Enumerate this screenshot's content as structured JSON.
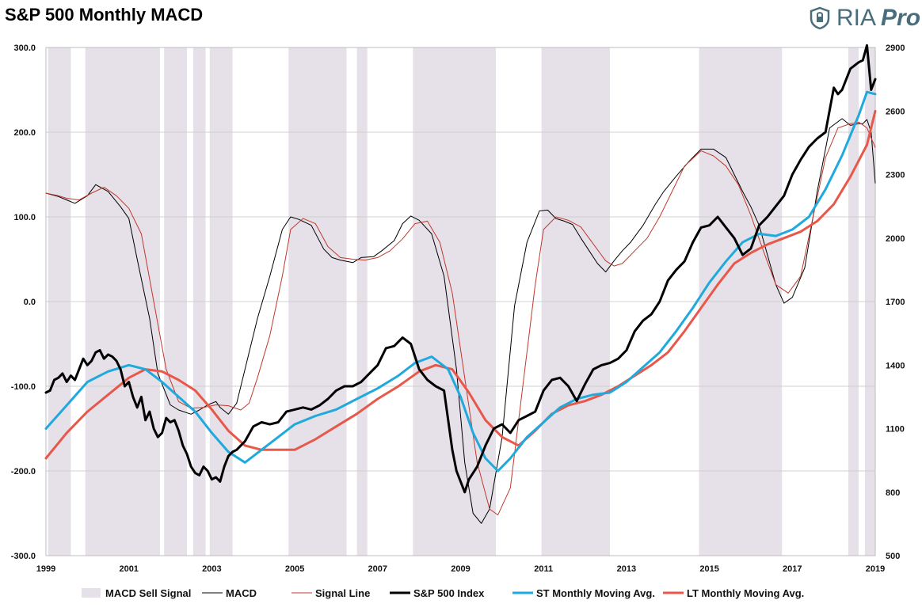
{
  "chart_data": {
    "type": "line",
    "title": "S&P 500 Monthly MACD",
    "brand": {
      "name": "RIA",
      "suffix": "Pro",
      "icon": "shield-icon",
      "color": "#4a6d7c"
    },
    "x_axis": {
      "range": [
        1999,
        2019
      ],
      "ticks": [
        "1999",
        "2001",
        "2003",
        "2005",
        "2007",
        "2009",
        "2011",
        "2013",
        "2015",
        "2017",
        "2019"
      ]
    },
    "y_left": {
      "range": [
        -300,
        300
      ],
      "ticks": [
        "300.0",
        "200.0",
        "100.0",
        "0.0",
        "-100.0",
        "-200.0",
        "-300.0"
      ],
      "tick_values": [
        300,
        200,
        100,
        0,
        -100,
        -200,
        -300
      ]
    },
    "y_right": {
      "range": [
        500,
        2900
      ],
      "ticks": [
        "2900",
        "2600",
        "2300",
        "2000",
        "1700",
        "1400",
        "1100",
        "800",
        "500"
      ],
      "tick_values": [
        2900,
        2600,
        2300,
        2000,
        1700,
        1400,
        1100,
        800,
        500
      ]
    },
    "sell_signal_periods": [
      [
        1999.05,
        1999.6
      ],
      [
        1999.95,
        2001.75
      ],
      [
        2001.85,
        2002.4
      ],
      [
        2002.55,
        2002.85
      ],
      [
        2002.95,
        2003.5
      ],
      [
        2004.85,
        2006.25
      ],
      [
        2006.5,
        2006.75
      ],
      [
        2007.85,
        2009.85
      ],
      [
        2010.95,
        2012.6
      ],
      [
        2014.75,
        2016.75
      ],
      [
        2018.35,
        2018.6
      ],
      [
        2018.75,
        2019.05
      ]
    ],
    "series": [
      {
        "name": "MACD",
        "axis": "left",
        "color": "#000000",
        "width": 1,
        "x": [
          1999,
          1999.3,
          1999.5,
          1999.7,
          2000,
          2000.2,
          2000.5,
          2000.8,
          2001,
          2001.2,
          2001.5,
          2001.7,
          2002,
          2002.2,
          2002.5,
          2002.7,
          2002.9,
          2003.1,
          2003.2,
          2003.4,
          2003.6,
          2003.9,
          2004.1,
          2004.4,
          2004.7,
          2004.9,
          2005.1,
          2005.4,
          2005.7,
          2005.9,
          2006.1,
          2006.4,
          2006.6,
          2006.9,
          2007.1,
          2007.4,
          2007.6,
          2007.8,
          2008,
          2008.3,
          2008.6,
          2008.9,
          2009.1,
          2009.3,
          2009.5,
          2009.7,
          2010,
          2010.3,
          2010.6,
          2010.9,
          2011.1,
          2011.3,
          2011.5,
          2011.7,
          2011.9,
          2012.1,
          2012.3,
          2012.5,
          2012.7,
          2012.9,
          2013.1,
          2013.4,
          2013.7,
          2013.9,
          2014.2,
          2014.5,
          2014.8,
          2015.1,
          2015.4,
          2015.6,
          2015.8,
          2016,
          2016.2,
          2016.4,
          2016.6,
          2016.8,
          2017,
          2017.3,
          2017.6,
          2017.9,
          2018.2,
          2018.4,
          2018.6,
          2018.7,
          2018.8,
          2018.9,
          2019
        ],
        "values": [
          128,
          124,
          120,
          116,
          125,
          138,
          130,
          112,
          98,
          50,
          -20,
          -85,
          -122,
          -128,
          -133,
          -128,
          -122,
          -118,
          -125,
          -133,
          -120,
          -60,
          -20,
          30,
          85,
          100,
          97,
          90,
          62,
          52,
          49,
          46,
          52,
          53,
          60,
          72,
          92,
          101,
          96,
          80,
          30,
          -80,
          -190,
          -250,
          -262,
          -245,
          -160,
          -5,
          70,
          107,
          108,
          98,
          95,
          91,
          75,
          60,
          45,
          35,
          48,
          60,
          70,
          90,
          115,
          130,
          148,
          165,
          180,
          180,
          170,
          150,
          130,
          112,
          90,
          55,
          20,
          -2,
          5,
          40,
          130,
          205,
          216,
          208,
          210,
          210,
          215,
          200,
          140
        ]
      },
      {
        "name": "Signal Line",
        "axis": "left",
        "color": "#c0392b",
        "width": 1,
        "x": [
          1999,
          1999.3,
          1999.5,
          1999.8,
          2000.1,
          2000.4,
          2000.7,
          2001,
          2001.3,
          2001.6,
          2001.9,
          2002.2,
          2002.5,
          2002.8,
          2003.1,
          2003.4,
          2003.7,
          2003.9,
          2004.1,
          2004.4,
          2004.7,
          2004.9,
          2005.2,
          2005.5,
          2005.8,
          2006.1,
          2006.4,
          2006.7,
          2007,
          2007.3,
          2007.6,
          2007.9,
          2008.2,
          2008.5,
          2008.8,
          2009.1,
          2009.4,
          2009.7,
          2009.9,
          2010.2,
          2010.5,
          2010.8,
          2011,
          2011.3,
          2011.6,
          2011.9,
          2012.2,
          2012.5,
          2012.7,
          2012.9,
          2013.2,
          2013.5,
          2013.8,
          2014.1,
          2014.4,
          2014.8,
          2015.1,
          2015.4,
          2015.7,
          2016,
          2016.3,
          2016.6,
          2016.9,
          2017.2,
          2017.5,
          2017.8,
          2018.1,
          2018.4,
          2018.6,
          2018.8,
          2019
        ],
        "values": [
          128,
          125,
          122,
          120,
          128,
          135,
          125,
          110,
          80,
          0,
          -80,
          -118,
          -126,
          -125,
          -122,
          -123,
          -128,
          -120,
          -90,
          -40,
          30,
          85,
          98,
          92,
          65,
          52,
          50,
          49,
          52,
          60,
          74,
          92,
          95,
          70,
          10,
          -90,
          -190,
          -245,
          -252,
          -220,
          -100,
          20,
          85,
          100,
          96,
          88,
          68,
          48,
          42,
          45,
          60,
          75,
          100,
          130,
          160,
          178,
          172,
          160,
          138,
          102,
          60,
          20,
          10,
          30,
          100,
          170,
          205,
          210,
          212,
          205,
          182
        ]
      },
      {
        "name": "S&P 500 Index",
        "axis": "right",
        "color": "#000000",
        "width": 3,
        "x": [
          1999,
          1999.1,
          1999.2,
          1999.3,
          1999.4,
          1999.5,
          1999.6,
          1999.7,
          1999.8,
          1999.9,
          2000,
          2000.1,
          2000.2,
          2000.3,
          2000.4,
          2000.5,
          2000.6,
          2000.7,
          2000.8,
          2000.9,
          2001,
          2001.1,
          2001.2,
          2001.3,
          2001.4,
          2001.5,
          2001.6,
          2001.7,
          2001.8,
          2001.9,
          2002,
          2002.1,
          2002.2,
          2002.3,
          2002.4,
          2002.5,
          2002.6,
          2002.7,
          2002.8,
          2002.9,
          2003,
          2003.1,
          2003.2,
          2003.3,
          2003.4,
          2003.5,
          2003.6,
          2003.8,
          2004,
          2004.2,
          2004.4,
          2004.6,
          2004.8,
          2005,
          2005.2,
          2005.4,
          2005.6,
          2005.8,
          2006,
          2006.2,
          2006.4,
          2006.6,
          2006.8,
          2007,
          2007.2,
          2007.4,
          2007.6,
          2007.8,
          2008,
          2008.2,
          2008.4,
          2008.6,
          2008.8,
          2008.9,
          2009,
          2009.1,
          2009.2,
          2009.4,
          2009.6,
          2009.8,
          2010,
          2010.2,
          2010.4,
          2010.6,
          2010.8,
          2011,
          2011.2,
          2011.4,
          2011.6,
          2011.8,
          2012,
          2012.2,
          2012.4,
          2012.6,
          2012.8,
          2013,
          2013.2,
          2013.4,
          2013.6,
          2013.8,
          2014,
          2014.2,
          2014.4,
          2014.6,
          2014.8,
          2015,
          2015.2,
          2015.4,
          2015.6,
          2015.8,
          2016,
          2016.2,
          2016.4,
          2016.6,
          2016.8,
          2017,
          2017.2,
          2017.4,
          2017.6,
          2017.8,
          2018,
          2018.1,
          2018.2,
          2018.4,
          2018.6,
          2018.7,
          2018.8,
          2018.9,
          2019
        ],
        "values": [
          1270,
          1280,
          1330,
          1340,
          1360,
          1320,
          1350,
          1330,
          1380,
          1430,
          1400,
          1420,
          1460,
          1470,
          1430,
          1450,
          1440,
          1420,
          1380,
          1300,
          1320,
          1250,
          1200,
          1250,
          1140,
          1180,
          1100,
          1060,
          1080,
          1150,
          1130,
          1140,
          1090,
          1020,
          980,
          920,
          890,
          880,
          920,
          900,
          860,
          870,
          850,
          920,
          970,
          990,
          1000,
          1040,
          1110,
          1130,
          1120,
          1130,
          1180,
          1190,
          1200,
          1190,
          1210,
          1240,
          1280,
          1300,
          1300,
          1320,
          1360,
          1400,
          1480,
          1490,
          1530,
          1500,
          1380,
          1330,
          1300,
          1280,
          1000,
          900,
          850,
          800,
          860,
          920,
          1020,
          1100,
          1120,
          1080,
          1140,
          1160,
          1180,
          1280,
          1330,
          1340,
          1300,
          1230,
          1310,
          1380,
          1400,
          1410,
          1430,
          1470,
          1560,
          1610,
          1640,
          1700,
          1800,
          1850,
          1890,
          1980,
          2050,
          2060,
          2100,
          2050,
          2000,
          1920,
          1950,
          2060,
          2100,
          2150,
          2200,
          2300,
          2370,
          2430,
          2470,
          2500,
          2710,
          2680,
          2700,
          2800,
          2830,
          2840,
          2910,
          2700,
          2750
        ]
      },
      {
        "name": "ST Monthly Moving Avg.",
        "axis": "right",
        "color": "#1fa9dc",
        "width": 3,
        "x": [
          1999,
          1999.5,
          2000,
          2000.5,
          2001,
          2001.4,
          2001.8,
          2002.2,
          2002.6,
          2003,
          2003.4,
          2003.8,
          2004.2,
          2004.6,
          2005,
          2005.5,
          2006,
          2006.5,
          2007,
          2007.5,
          2007.9,
          2008.3,
          2008.7,
          2009,
          2009.3,
          2009.6,
          2009.9,
          2010.2,
          2010.6,
          2011,
          2011.4,
          2011.8,
          2012.2,
          2012.6,
          2013,
          2013.4,
          2013.8,
          2014.2,
          2014.6,
          2015,
          2015.4,
          2015.8,
          2016.2,
          2016.6,
          2017,
          2017.4,
          2017.8,
          2018.2,
          2018.6,
          2018.8,
          2019
        ],
        "values": [
          1100,
          1210,
          1320,
          1370,
          1400,
          1380,
          1320,
          1250,
          1180,
          1080,
          990,
          940,
          1000,
          1060,
          1120,
          1160,
          1190,
          1240,
          1290,
          1350,
          1410,
          1440,
          1380,
          1250,
          1080,
          960,
          900,
          960,
          1060,
          1130,
          1200,
          1240,
          1260,
          1270,
          1320,
          1390,
          1460,
          1560,
          1670,
          1790,
          1890,
          1980,
          2020,
          2010,
          2040,
          2100,
          2230,
          2390,
          2580,
          2690,
          2680
        ]
      },
      {
        "name": "LT Monthly Moving Avg.",
        "axis": "right",
        "color": "#e8584a",
        "width": 3,
        "x": [
          1999,
          1999.5,
          2000,
          2000.5,
          2001,
          2001.4,
          2001.8,
          2002.2,
          2002.6,
          2003,
          2003.4,
          2003.8,
          2004.2,
          2004.6,
          2005,
          2005.5,
          2006,
          2006.5,
          2007,
          2007.5,
          2008,
          2008.4,
          2008.8,
          2009.2,
          2009.6,
          2010,
          2010.4,
          2010.8,
          2011.2,
          2011.6,
          2012,
          2012.4,
          2012.8,
          2013.2,
          2013.6,
          2014,
          2014.4,
          2014.8,
          2015.2,
          2015.6,
          2016,
          2016.4,
          2016.8,
          2017.2,
          2017.6,
          2018,
          2018.4,
          2018.8,
          2019
        ],
        "values": [
          960,
          1080,
          1180,
          1260,
          1340,
          1380,
          1370,
          1330,
          1280,
          1190,
          1090,
          1020,
          1000,
          1000,
          1000,
          1050,
          1110,
          1170,
          1240,
          1300,
          1370,
          1400,
          1380,
          1270,
          1140,
          1060,
          1020,
          1090,
          1170,
          1210,
          1230,
          1260,
          1300,
          1350,
          1400,
          1460,
          1560,
          1670,
          1780,
          1880,
          1930,
          1970,
          2000,
          2030,
          2080,
          2160,
          2290,
          2440,
          2600
        ]
      }
    ],
    "legend": [
      {
        "label": "MACD Sell Signal",
        "style": "swatch",
        "color": "#e6e0e9"
      },
      {
        "label": "MACD",
        "style": "line",
        "color": "#000000",
        "width": 1
      },
      {
        "label": "Signal Line",
        "style": "line",
        "color": "#c0392b",
        "width": 1
      },
      {
        "label": "S&P 500 Index",
        "style": "line",
        "color": "#000000",
        "width": 3
      },
      {
        "label": "ST Monthly Moving Avg.",
        "style": "line",
        "color": "#1fa9dc",
        "width": 3
      },
      {
        "label": "LT Monthly Moving Avg.",
        "style": "line",
        "color": "#e8584a",
        "width": 3
      }
    ]
  }
}
